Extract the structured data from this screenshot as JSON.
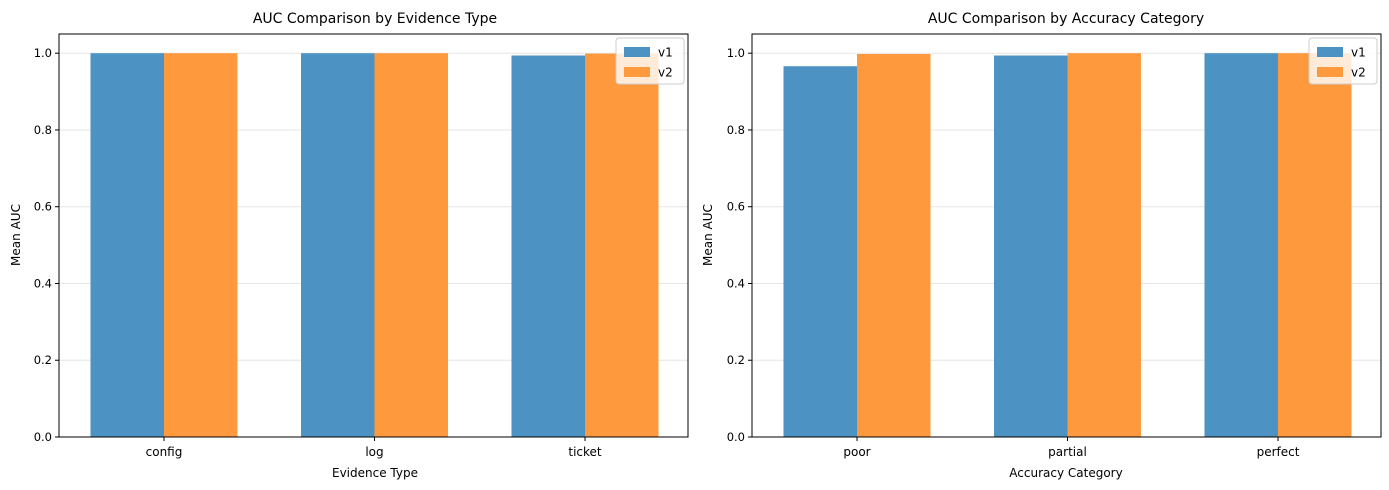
{
  "chart_data": [
    {
      "type": "bar",
      "title": "AUC Comparison by Evidence Type",
      "xlabel": "Evidence Type",
      "ylabel": "Mean AUC",
      "categories": [
        "config",
        "log",
        "ticket"
      ],
      "series": [
        {
          "name": "v1",
          "values": [
            1.0,
            1.0,
            0.994
          ]
        },
        {
          "name": "v2",
          "values": [
            1.0,
            1.0,
            0.999
          ]
        }
      ],
      "ylim": [
        0,
        1.05
      ],
      "yticks": [
        "0.0",
        "0.2",
        "0.4",
        "0.6",
        "0.8",
        "1.0"
      ],
      "grid": "horizontal",
      "legend": "top-right"
    },
    {
      "type": "bar",
      "title": "AUC Comparison by Accuracy Category",
      "xlabel": "Accuracy Category",
      "ylabel": "Mean AUC",
      "categories": [
        "poor",
        "partial",
        "perfect"
      ],
      "series": [
        {
          "name": "v1",
          "values": [
            0.966,
            0.994,
            1.0
          ]
        },
        {
          "name": "v2",
          "values": [
            0.998,
            1.0,
            1.0
          ]
        }
      ],
      "ylim": [
        0,
        1.05
      ],
      "yticks": [
        "0.0",
        "0.2",
        "0.4",
        "0.6",
        "0.8",
        "1.0"
      ],
      "grid": "horizontal",
      "legend": "top-right"
    }
  ],
  "colors": {
    "v1": "#4c92c3",
    "v2": "#ff993e"
  }
}
